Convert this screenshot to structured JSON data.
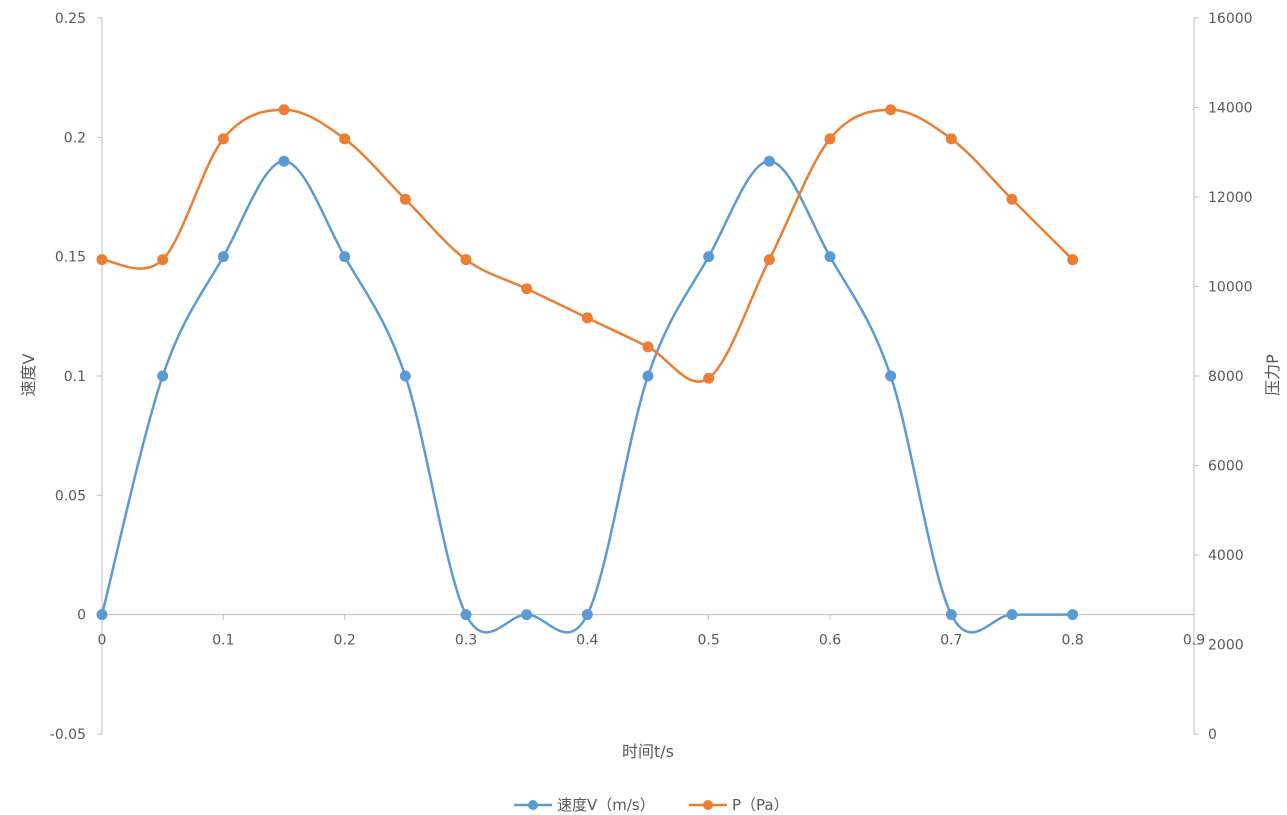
{
  "chart_data": {
    "type": "line",
    "title": "",
    "xlabel": "时间t/s",
    "ylabel": "速度V",
    "y2label": "压力P",
    "xlim": [
      0,
      0.9
    ],
    "ylim": [
      -0.05,
      0.25
    ],
    "y2lim": [
      0,
      16000
    ],
    "x_ticks": [
      "0",
      "0.1",
      "0.2",
      "0.3",
      "0.4",
      "0.5",
      "0.6",
      "0.7",
      "0.8",
      "0.9"
    ],
    "y_ticks": [
      "0.25",
      "0.2",
      "0.15",
      "0.1",
      "0.05",
      "0",
      "-0.05"
    ],
    "y2_ticks": [
      "16000",
      "14000",
      "12000",
      "10000",
      "8000",
      "6000",
      "4000",
      "2000",
      "0"
    ],
    "x_tick_values": [
      0,
      0.1,
      0.2,
      0.3,
      0.4,
      0.5,
      0.6,
      0.7,
      0.8,
      0.9
    ],
    "y_tick_values": [
      0.25,
      0.2,
      0.15,
      0.1,
      0.05,
      0,
      -0.05
    ],
    "y2_tick_values": [
      16000,
      14000,
      12000,
      10000,
      8000,
      6000,
      4000,
      2000,
      0
    ],
    "x": [
      0,
      0.05,
      0.1,
      0.15,
      0.2,
      0.25,
      0.3,
      0.35,
      0.4,
      0.45,
      0.5,
      0.55,
      0.6,
      0.65,
      0.7,
      0.75,
      0.8
    ],
    "series": [
      {
        "name": "速度V（m/s）",
        "axis": "left",
        "color": "#5B9BD5",
        "smooth": true,
        "values": [
          0,
          0.1,
          0.15,
          0.19,
          0.15,
          0.1,
          0,
          0,
          0,
          0.1,
          0.15,
          0.19,
          0.15,
          0.1,
          0,
          0,
          0
        ]
      },
      {
        "name": "P（Pa）",
        "axis": "right",
        "color": "#ED7D31",
        "smooth": true,
        "values": [
          10600,
          10600,
          13300,
          13950,
          13300,
          11950,
          10600,
          9950,
          9300,
          8650,
          7950,
          10600,
          13300,
          13950,
          13300,
          11950,
          10600
        ]
      }
    ],
    "grid": false,
    "legend_position": "bottom"
  }
}
